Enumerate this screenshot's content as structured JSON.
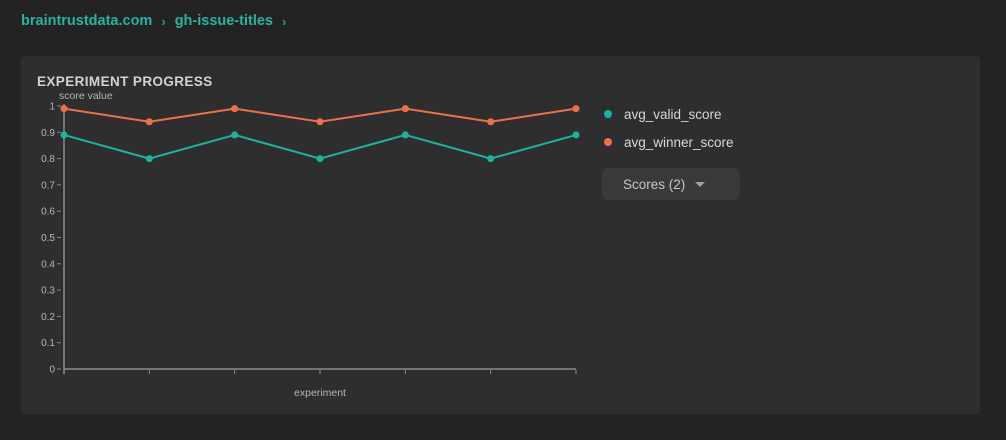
{
  "breadcrumb": {
    "org": "braintrustdata.com",
    "project": "gh-issue-titles",
    "separator": "›"
  },
  "card": {
    "title": "EXPERIMENT PROGRESS"
  },
  "scores_button": {
    "label": "Scores (2)",
    "icon": "chevron-down"
  },
  "colors": {
    "breadcrumb_teal": "#26b3a2",
    "page_bg": "#232121",
    "card_bg": "#2f2e2e",
    "button_bg": "#3a3838",
    "axis": "#8d8b8b"
  },
  "chart_data": {
    "type": "line",
    "title": "EXPERIMENT PROGRESS",
    "xlabel": "experiment",
    "ylabel": "score value",
    "x": [
      1,
      2,
      3,
      4,
      5,
      6,
      7
    ],
    "x_tick_labels": [
      "",
      "",
      "",
      "",
      "",
      "",
      ""
    ],
    "ylim": [
      0,
      1
    ],
    "yticks": [
      0,
      0.1,
      0.2,
      0.3,
      0.4,
      0.5,
      0.6,
      0.7,
      0.8,
      0.9,
      1
    ],
    "ytick_labels": [
      "0",
      "0.1",
      "0.2",
      "0.3",
      "0.4",
      "0.5",
      "0.6",
      "0.7",
      "0.8",
      "0.9",
      "1"
    ],
    "grid": false,
    "legend_position": "right",
    "series": [
      {
        "name": "avg_valid_score",
        "color": "#1cb2a0",
        "values": [
          0.89,
          0.8,
          0.89,
          0.8,
          0.89,
          0.8,
          0.89
        ]
      },
      {
        "name": "avg_winner_score",
        "color": "#ec6f4c",
        "values": [
          0.99,
          0.94,
          0.99,
          0.94,
          0.99,
          0.94,
          0.99
        ]
      }
    ]
  }
}
